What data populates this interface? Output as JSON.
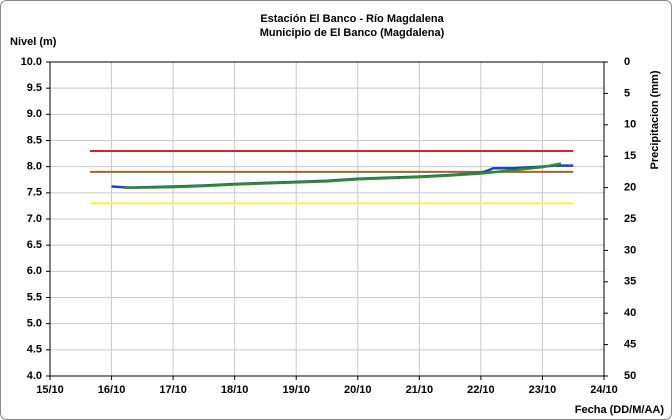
{
  "chart_data": {
    "type": "line",
    "title": "Estación El Banco - Río Magdalena",
    "subtitle": "Municipio de El Banco (Magdalena)",
    "y_label": "Nivel (m)",
    "y2_label": "Precipitacion (mm)",
    "x_label": "Fecha (DD/M/AA)",
    "xlim": [
      15,
      24
    ],
    "xticks": [
      {
        "value": 15,
        "label": "15/10"
      },
      {
        "value": 16,
        "label": "16/10"
      },
      {
        "value": 17,
        "label": "17/10"
      },
      {
        "value": 18,
        "label": "18/10"
      },
      {
        "value": 19,
        "label": "19/10"
      },
      {
        "value": 20,
        "label": "20/10"
      },
      {
        "value": 21,
        "label": "21/10"
      },
      {
        "value": 22,
        "label": "22/10"
      },
      {
        "value": 23,
        "label": "23/10"
      },
      {
        "value": 24,
        "label": "24/10"
      }
    ],
    "ylim": [
      4,
      10
    ],
    "yticks": [
      {
        "value": 4,
        "label": "4.0"
      },
      4.5,
      {
        "value": 5,
        "label": "5.0"
      },
      5.5,
      {
        "value": 6,
        "label": "6.0"
      },
      6.5,
      {
        "value": 7,
        "label": "7.0"
      },
      7.5,
      {
        "value": 8,
        "label": "8.0"
      },
      8.5,
      {
        "value": 9,
        "label": "9.0"
      },
      9.5,
      {
        "value": 10,
        "label": "10.0"
      }
    ],
    "y2lim": [
      50,
      0
    ],
    "y2ticks": [
      0,
      5,
      10,
      15,
      20,
      25,
      30,
      35,
      40,
      45,
      50
    ],
    "grid": true,
    "reference_lines": [
      {
        "value": 8.3,
        "color": "#e02020",
        "x": [
          15.65,
          23.5
        ]
      },
      {
        "value": 7.9,
        "color": "#a0662a",
        "x": [
          15.65,
          23.5
        ]
      },
      {
        "value": 7.3,
        "color": "#f5f542",
        "x": [
          15.65,
          23.5
        ]
      }
    ],
    "series": [
      {
        "color": "#1f3fd0",
        "x": [
          16.0,
          16.3,
          17.0,
          17.5,
          18.0,
          18.5,
          19.0,
          19.5,
          20.0,
          20.5,
          21.0,
          21.5,
          22.0,
          22.1,
          22.2,
          22.5,
          23.0,
          23.2,
          23.5
        ],
        "values": [
          7.62,
          7.6,
          7.62,
          7.64,
          7.67,
          7.69,
          7.71,
          7.73,
          7.77,
          7.79,
          7.81,
          7.84,
          7.88,
          7.92,
          7.97,
          7.97,
          8.0,
          8.02,
          8.02
        ]
      },
      {
        "color": "#2e8b2e",
        "x": [
          16.2,
          16.5,
          17.0,
          17.5,
          18.0,
          18.5,
          19.0,
          19.5,
          20.0,
          20.5,
          21.0,
          21.5,
          22.0,
          22.5,
          23.0,
          23.3
        ],
        "values": [
          7.6,
          7.6,
          7.61,
          7.63,
          7.66,
          7.68,
          7.7,
          7.72,
          7.76,
          7.78,
          7.8,
          7.83,
          7.87,
          7.93,
          7.99,
          8.06
        ]
      }
    ]
  }
}
